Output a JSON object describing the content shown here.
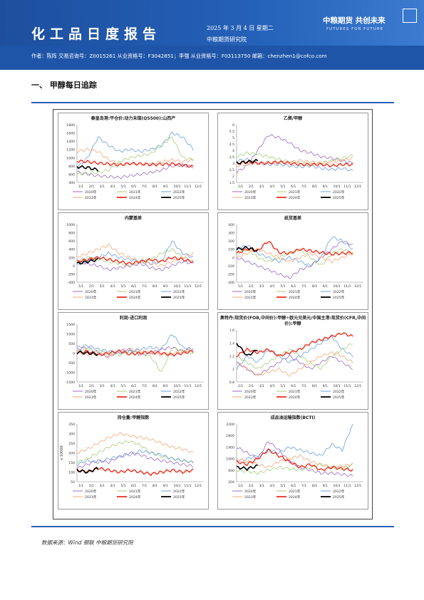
{
  "header": {
    "title": "化工品日度报告",
    "date": "2025 年 3 月 4 日 星期二",
    "institute": "中粮期货研究院",
    "logo_cn": "中粮期货  共创未来",
    "logo_en": "FUTURES FOR FUTURE",
    "authors": "作者：陈阵   交易咨询号：Z0015261 从业资格号：F3042851；李强  从业资格号：F03113750   邮箱：chenzhen1@cofco.com"
  },
  "section_title": "一、  甲醇每日追踪",
  "source": "数据来源：Wind 钢联 中粮期货研究院",
  "colors": {
    "2020": "#9a6bc4",
    "2021": "#a6cf7a",
    "2022": "#6b9fe0",
    "2023": "#f0a878",
    "2024": "#f03020",
    "2025": "#000000"
  },
  "months": [
    "1/1",
    "2/1",
    "3/1",
    "4/1",
    "5/1",
    "6/1",
    "7/1",
    "8/1",
    "9/1",
    "10/1",
    "11/1",
    "12/1"
  ],
  "legend": [
    "2020年",
    "2021年",
    "2022年",
    "2023年",
    "2024年",
    "2025年"
  ],
  "panels": [
    {
      "title": "秦皇岛港:平仓价:动力末煤(Q5500):山西产",
      "ylabels": [
        "1800",
        "1600",
        "1400",
        "1200",
        "1000",
        "800",
        "600",
        "400"
      ],
      "ymin": 400,
      "ymax": 1800
    },
    {
      "title": "乙烯/甲醇",
      "ylabels": [
        "6",
        "5.5",
        "5",
        "4.5",
        "4",
        "3.5",
        "3",
        "2.5",
        "2",
        "1.5"
      ],
      "ymin": 1.5,
      "ymax": 6
    },
    {
      "title": "内蒙基差",
      "ylabels": [
        "1000",
        "800",
        "600",
        "400",
        "200",
        "0",
        "-200",
        "-400"
      ],
      "ymin": -400,
      "ymax": 1000
    },
    {
      "title": "纸货基差",
      "ylabels": [
        "400",
        "300",
        "200",
        "100",
        "0",
        "-100",
        "-200",
        "-300"
      ],
      "ymin": -300,
      "ymax": 400
    },
    {
      "title": "利润-进口利润",
      "ylabels": [
        "1500",
        "1000",
        "500",
        "0",
        "-500",
        "-1000",
        "-1500"
      ],
      "ymin": -1500,
      "ymax": 1500
    },
    {
      "title": "奥特丹:现货价(FOB,中间价):甲醇÷欧元兑美元/中国主港:现货价(CFR,中间价):甲醇",
      "ylabels": [
        "1.6",
        "1.4",
        "1.2",
        "1",
        "0.8"
      ],
      "ymin": 0.8,
      "ymax": 1.6
    },
    {
      "title": "持仓量:甲醇指数",
      "ylabels": [
        "350",
        "300",
        "250",
        "200",
        "150",
        "100",
        "50"
      ],
      "ymin": 50,
      "ymax": 350,
      "yunit": "x 10000"
    },
    {
      "title": "成品油运输指数(BCTI)",
      "ylabels": [
        "2200",
        "1800",
        "1400",
        "1000",
        "600",
        "200"
      ],
      "ymin": 200,
      "ymax": 2200
    }
  ],
  "series_seed": [
    {
      "2020": [
        650,
        600,
        560,
        540,
        520,
        560,
        600,
        640,
        700,
        800,
        820,
        780
      ],
      "2021": [
        600,
        620,
        640,
        700,
        900,
        1000,
        1050,
        1100,
        1300,
        1500,
        1000,
        950
      ],
      "2022": [
        750,
        1000,
        1500,
        1300,
        1150,
        1200,
        1150,
        1200,
        1300,
        1600,
        1500,
        1200
      ],
      "2023": [
        1150,
        1200,
        1150,
        950,
        850,
        850,
        850,
        850,
        900,
        950,
        900,
        950
      ],
      "2024": [
        920,
        900,
        870,
        850,
        820,
        860,
        850,
        830,
        840,
        850,
        820,
        780
      ],
      "2025": [
        780,
        760,
        700
      ]
    },
    {
      "2020": [
        2.3,
        2.8,
        4.0,
        5.2,
        5.0,
        4.6,
        4.0,
        3.8,
        3.5,
        3.4,
        3.2,
        3.0
      ],
      "2021": [
        3.5,
        3.8,
        3.7,
        3.5,
        3.3,
        3.1,
        3.0,
        2.9,
        3.0,
        3.2,
        3.4,
        3.6
      ],
      "2022": [
        3.2,
        3.3,
        3.0,
        2.9,
        2.9,
        2.8,
        2.7,
        2.8,
        2.6,
        2.5,
        2.6,
        2.4
      ],
      "2023": [
        2.8,
        2.9,
        3.0,
        3.1,
        3.0,
        3.1,
        3.2,
        3.1,
        3.0,
        3.1,
        3.2,
        3.4
      ],
      "2024": [
        3.0,
        3.1,
        3.0,
        3.0,
        3.1,
        3.0,
        2.9,
        2.9,
        2.9,
        2.8,
        2.9,
        2.9
      ],
      "2025": [
        3.0,
        3.1,
        3.2
      ]
    },
    {
      "2020": [
        100,
        50,
        0,
        -100,
        -50,
        0,
        50,
        -50,
        -100,
        0,
        100,
        50
      ],
      "2021": [
        100,
        200,
        150,
        100,
        50,
        0,
        100,
        150,
        300,
        400,
        200,
        100
      ],
      "2022": [
        50,
        100,
        200,
        300,
        200,
        150,
        100,
        50,
        100,
        600,
        300,
        200
      ],
      "2023": [
        200,
        300,
        400,
        500,
        300,
        200,
        100,
        50,
        0,
        100,
        200,
        300
      ],
      "2024": [
        100,
        150,
        200,
        150,
        100,
        50,
        100,
        150,
        100,
        200,
        150,
        100
      ],
      "2025": [
        50,
        100,
        150
      ]
    },
    {
      "2020": [
        0,
        -50,
        -100,
        -150,
        -200,
        -250,
        -150,
        -100,
        0,
        100,
        200,
        150
      ],
      "2021": [
        50,
        100,
        0,
        -50,
        0,
        50,
        100,
        0,
        -100,
        50,
        100,
        50
      ],
      "2022": [
        100,
        150,
        50,
        0,
        -50,
        0,
        -50,
        -100,
        0,
        250,
        200,
        100
      ],
      "2023": [
        0,
        50,
        100,
        50,
        0,
        -50,
        0,
        50,
        0,
        -50,
        0,
        50
      ],
      "2024": [
        50,
        100,
        80,
        200,
        60,
        50,
        100,
        80,
        60,
        40,
        50,
        60
      ],
      "2025": [
        100,
        120,
        80
      ]
    },
    {
      "2020": [
        200,
        300,
        0,
        -200,
        100,
        200,
        -100,
        0,
        200,
        300,
        100,
        200
      ],
      "2021": [
        100,
        200,
        100,
        0,
        -100,
        100,
        0,
        -200,
        -1000,
        300,
        100,
        0
      ],
      "2022": [
        300,
        400,
        200,
        100,
        0,
        100,
        200,
        300,
        200,
        1000,
        300,
        200
      ],
      "2023": [
        100,
        -100,
        0,
        -200,
        100,
        200,
        100,
        0,
        -100,
        0,
        100,
        200
      ],
      "2024": [
        0,
        100,
        -100,
        0,
        100,
        -50,
        0,
        50,
        0,
        -100,
        0,
        100
      ],
      "2025": [
        50,
        0,
        -50
      ]
    },
    {
      "2020": [
        1.1,
        1.0,
        0.9,
        1.0,
        1.1,
        1.2,
        1.1,
        1.0,
        1.1,
        1.2,
        1.1,
        1.0
      ],
      "2021": [
        1.2,
        1.1,
        1.0,
        1.1,
        1.2,
        1.3,
        1.2,
        1.1,
        1.0,
        1.2,
        1.3,
        1.4
      ],
      "2022": [
        1.0,
        1.2,
        1.1,
        1.3,
        1.2,
        1.1,
        1.2,
        1.3,
        1.4,
        1.5,
        1.3,
        1.2
      ],
      "2023": [
        1.1,
        1.0,
        0.9,
        0.95,
        1.0,
        0.9,
        1.0,
        1.1,
        1.2,
        1.25,
        1.2,
        1.1
      ],
      "2024": [
        1.2,
        1.3,
        1.25,
        1.3,
        1.2,
        1.25,
        1.3,
        1.4,
        1.45,
        1.5,
        1.55,
        1.5
      ],
      "2025": [
        1.4,
        1.2,
        1.3
      ]
    },
    {
      "2020": [
        120,
        140,
        160,
        150,
        180,
        200,
        190,
        170,
        160,
        150,
        140,
        130
      ],
      "2021": [
        150,
        170,
        200,
        230,
        250,
        260,
        240,
        200,
        180,
        170,
        160,
        150
      ],
      "2022": [
        140,
        160,
        150,
        170,
        180,
        190,
        210,
        200,
        190,
        170,
        160,
        150
      ],
      "2023": [
        200,
        220,
        250,
        280,
        300,
        290,
        280,
        270,
        250,
        230,
        220,
        200
      ],
      "2024": [
        110,
        100,
        120,
        110,
        100,
        110,
        100,
        90,
        100,
        110,
        100,
        110
      ],
      "2025": [
        110,
        100,
        120
      ]
    },
    {
      "2020": [
        1400,
        1200,
        1000,
        1600,
        1300,
        900,
        700,
        600,
        500,
        500,
        450,
        400
      ],
      "2021": [
        600,
        550,
        500,
        600,
        700,
        650,
        600,
        700,
        800,
        700,
        650,
        800
      ],
      "2022": [
        900,
        1000,
        1100,
        1300,
        1200,
        1400,
        1300,
        1200,
        1100,
        1500,
        1300,
        2200
      ],
      "2023": [
        1000,
        900,
        800,
        700,
        900,
        1000,
        1100,
        900,
        800,
        700,
        750,
        800
      ],
      "2024": [
        900,
        800,
        1000,
        1300,
        1100,
        900,
        700,
        800,
        600,
        700,
        650,
        600
      ],
      "2025": [
        700,
        650,
        750
      ]
    }
  ]
}
